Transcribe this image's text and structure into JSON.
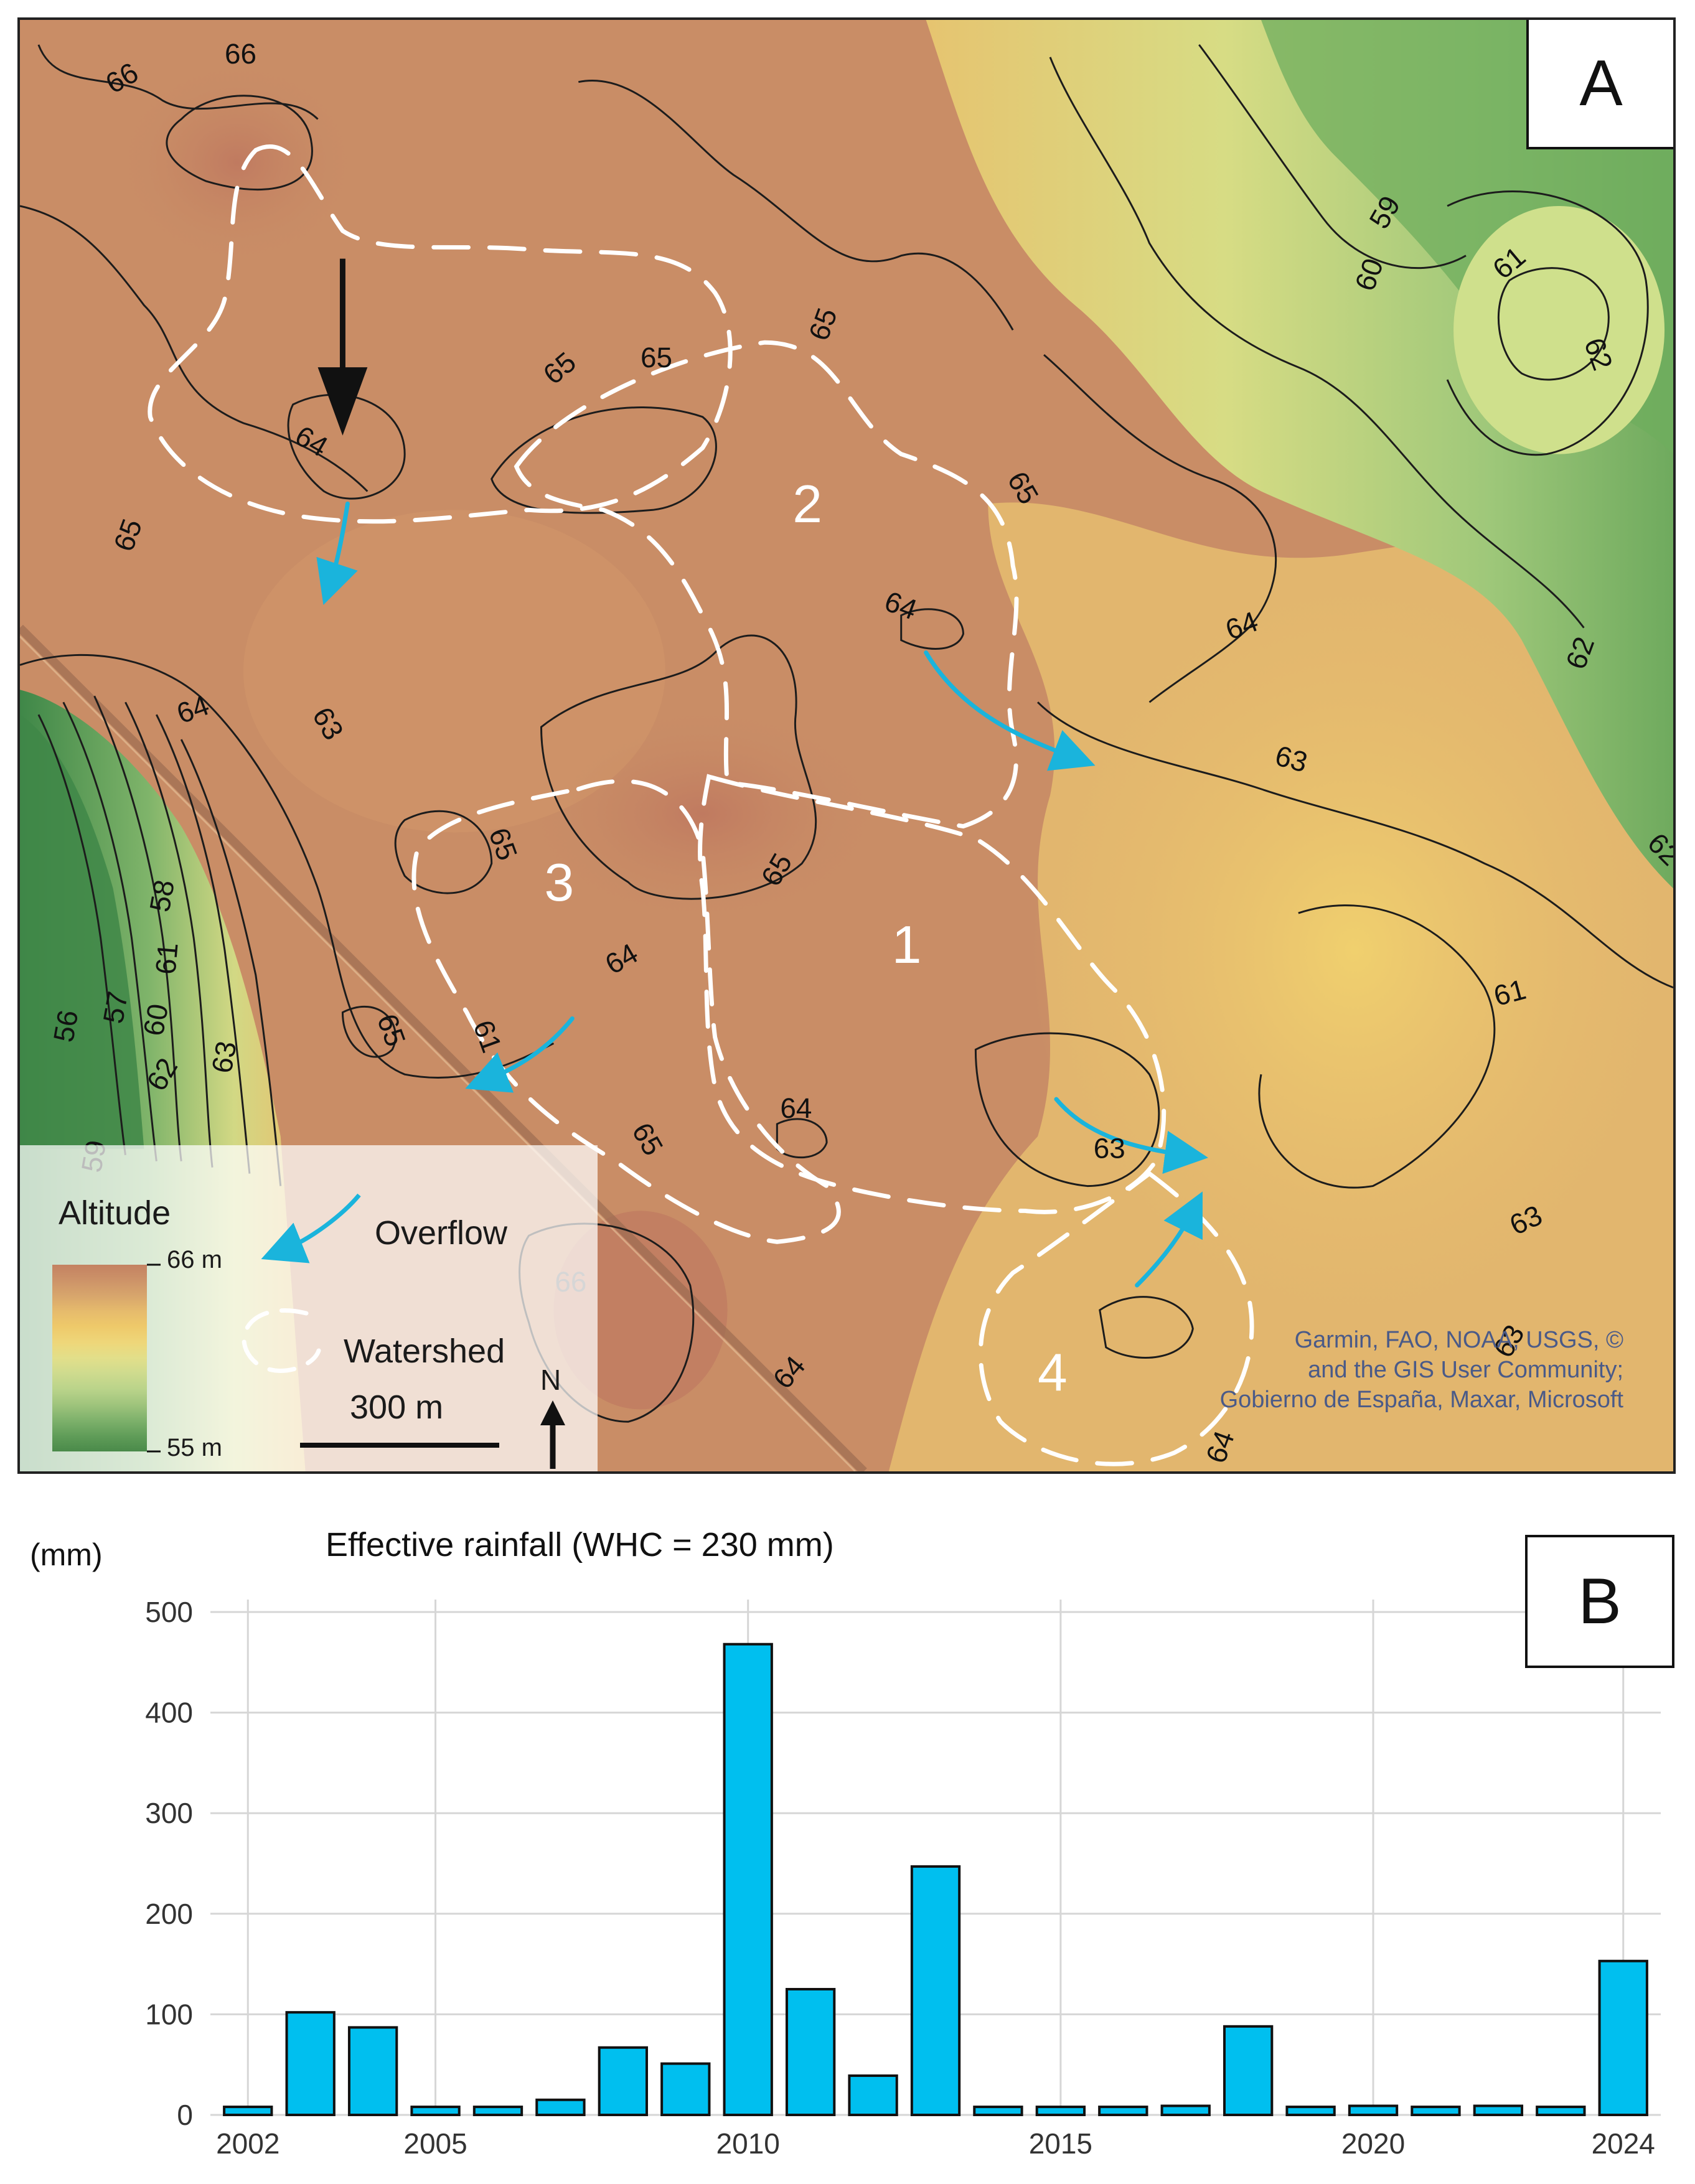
{
  "panel_a": {
    "label": "A",
    "legend": {
      "title": "Altitude",
      "max_label": "66 m",
      "min_label": "55 m",
      "overflow_label": "Overflow",
      "watershed_label": "Watershed",
      "scale_label": "300 m",
      "north_label": "N",
      "ramp_colors": [
        "#c48262",
        "#cc9268",
        "#d8a66c",
        "#e6bb6c",
        "#eec96a",
        "#eed77a",
        "#e2df8a",
        "#cfdb8e",
        "#b9d38a",
        "#9fc47c",
        "#7fb26c",
        "#5f9c58",
        "#4a8a4a"
      ]
    },
    "watersheds": [
      "1",
      "2",
      "3",
      "4"
    ],
    "contour_labels": [
      "66",
      "66",
      "66",
      "65",
      "65",
      "65",
      "65",
      "65",
      "65",
      "65",
      "65",
      "65",
      "64",
      "64",
      "64",
      "64",
      "64",
      "64",
      "64",
      "64",
      "63",
      "63",
      "63",
      "63",
      "63",
      "63",
      "62",
      "62",
      "62",
      "62",
      "61",
      "61",
      "61",
      "61",
      "60",
      "60",
      "59",
      "59",
      "58",
      "57",
      "56"
    ],
    "attribution": [
      "Garmin, FAO, NOAA, USGS, ©",
      "and the GIS User Community;",
      "Gobierno de España, Maxar, Microsoft"
    ],
    "colors": {
      "overflow_arrow": "#1ab4dc",
      "watershed_outline": "#ffffff",
      "contour": "#1c1c1c"
    }
  },
  "panel_b": {
    "label": "B",
    "unit": "(mm)",
    "title": "Effective rainfall (WHC = 230 mm)"
  },
  "chart_data": {
    "type": "bar",
    "title": "Effective rainfall (WHC = 230 mm)",
    "ylabel": "(mm)",
    "xlabel": "",
    "ylim": [
      0,
      500
    ],
    "yticks": [
      0,
      100,
      200,
      300,
      400,
      500
    ],
    "xticks": [
      2002,
      2005,
      2010,
      2015,
      2020,
      2024
    ],
    "grid": true,
    "bar_color": "#00bfef",
    "categories": [
      2002,
      2003,
      2004,
      2005,
      2006,
      2007,
      2008,
      2009,
      2010,
      2011,
      2012,
      2013,
      2014,
      2015,
      2016,
      2017,
      2018,
      2019,
      2020,
      2021,
      2022,
      2023,
      2024
    ],
    "values": [
      8,
      102,
      87,
      8,
      8,
      15,
      67,
      51,
      468,
      125,
      39,
      247,
      8,
      8,
      8,
      9,
      88,
      8,
      9,
      8,
      9,
      8,
      153
    ]
  }
}
